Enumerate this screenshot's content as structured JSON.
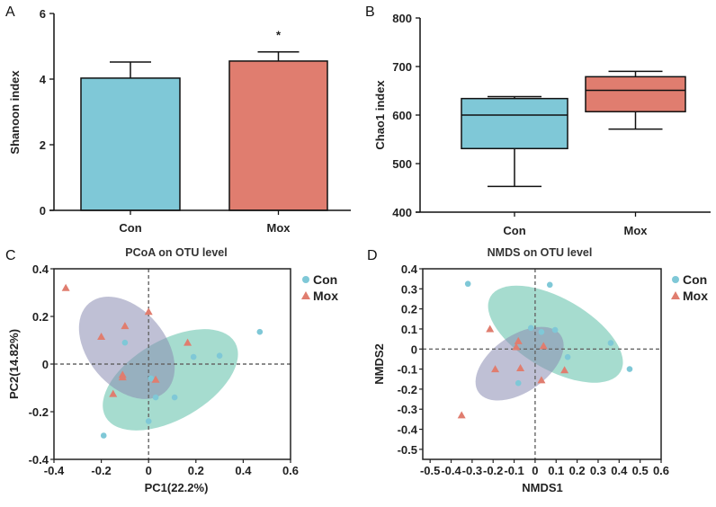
{
  "colors": {
    "con": "#7fc8d7",
    "mox": "#e07d6f",
    "con_ellipse": "#5cc0a8",
    "mox_ellipse": "#8a8db2"
  },
  "chart_data": [
    {
      "panel": "A",
      "type": "bar",
      "ylabel": "Shanoon index",
      "xlabel": "",
      "categories": [
        "Con",
        "Mox"
      ],
      "values": [
        4.03,
        4.55
      ],
      "error_upper": [
        4.52,
        4.83
      ],
      "annotations": [
        "",
        "*"
      ],
      "ylim": [
        0,
        6
      ],
      "yticks": [
        0,
        2,
        4,
        6
      ]
    },
    {
      "panel": "B",
      "type": "box",
      "ylabel": "Chao1 index",
      "xlabel": "",
      "categories": [
        "Con",
        "Mox"
      ],
      "boxes": [
        {
          "min": 453,
          "q1": 531,
          "median": 600,
          "q3": 634,
          "max": 638
        },
        {
          "min": 571,
          "q1": 607,
          "median": 651,
          "q3": 679,
          "max": 690
        }
      ],
      "ylim": [
        400,
        800
      ],
      "yticks": [
        400,
        500,
        600,
        700,
        800
      ]
    },
    {
      "panel": "C",
      "type": "scatter",
      "title": "PCoA on OTU level",
      "xlabel": "PC1(22.2%)",
      "ylabel": "PC2(14.82%)",
      "xlim": [
        -0.4,
        0.6
      ],
      "ylim": [
        -0.4,
        0.4
      ],
      "xticks": [
        -0.4,
        -0.2,
        0,
        0.2,
        0.4,
        0.6
      ],
      "xtick_labels": [
        "-0.4",
        "-0.2",
        "0",
        "0.2",
        "0.4",
        "0.6"
      ],
      "yticks": [
        -0.4,
        -0.2,
        0,
        0.2,
        0.4
      ],
      "ytick_labels": [
        "-0.4",
        "-0.2",
        "0",
        "0.2",
        "0.4"
      ],
      "legend": [
        "Con",
        "Mox"
      ],
      "legend_position": "right",
      "series": [
        {
          "name": "Con",
          "marker": "circle",
          "ellipse_center": [
            0.092,
            -0.066
          ],
          "points": [
            [
              -0.1,
              0.09
            ],
            [
              0.47,
              0.135
            ],
            [
              0.19,
              0.03
            ],
            [
              0.3,
              0.035
            ],
            [
              0.01,
              -0.06
            ],
            [
              0.03,
              -0.14
            ],
            [
              0.11,
              -0.14
            ],
            [
              0,
              -0.24
            ],
            [
              -0.19,
              -0.3
            ]
          ]
        },
        {
          "name": "Mox",
          "marker": "triangle",
          "ellipse_center": [
            -0.092,
            0.068
          ],
          "points": [
            [
              -0.35,
              0.32
            ],
            [
              0,
              0.22
            ],
            [
              -0.1,
              0.16
            ],
            [
              -0.2,
              0.115
            ],
            [
              0.165,
              0.09
            ],
            [
              -0.11,
              -0.045
            ],
            [
              -0.11,
              -0.055
            ],
            [
              0.03,
              -0.065
            ],
            [
              -0.15,
              -0.125
            ]
          ]
        }
      ]
    },
    {
      "panel": "D",
      "type": "scatter",
      "title": "NMDS on OTU level",
      "xlabel": "NMDS1",
      "ylabel": "NMDS2",
      "xlim": [
        -0.535,
        0.6
      ],
      "ylim": [
        -0.55,
        0.4
      ],
      "xticks": [
        -0.5,
        -0.4,
        -0.3,
        -0.2,
        -0.1,
        0,
        0.1,
        0.2,
        0.3,
        0.4,
        0.5,
        0.6
      ],
      "xtick_labels": [
        "-0.5",
        "-0.4",
        "-0.3",
        "-0.2",
        "-0.1",
        "0",
        "0.1",
        "0.2",
        "0.3",
        "0.4",
        "0.5",
        "0.6"
      ],
      "yticks": [
        -0.5,
        -0.4,
        -0.3,
        -0.2,
        -0.1,
        0,
        0.1,
        0.2,
        0.3,
        0.4
      ],
      "ytick_labels": [
        "-0.5",
        "-0.4",
        "-0.3",
        "-0.2",
        "-0.1",
        "0",
        "0.1",
        "0.2",
        "0.3",
        "0.4"
      ],
      "legend": [
        "Con",
        "Mox"
      ],
      "legend_position": "right",
      "series": [
        {
          "name": "Con",
          "marker": "circle",
          "ellipse_center": [
            0.097,
            0.074
          ],
          "points": [
            [
              -0.32,
              0.325
            ],
            [
              0.07,
              0.32
            ],
            [
              -0.02,
              0.105
            ],
            [
              0.03,
              0.085
            ],
            [
              0.095,
              0.095
            ],
            [
              0.36,
              0.03
            ],
            [
              0.155,
              -0.04
            ],
            [
              0.45,
              -0.1
            ],
            [
              -0.08,
              -0.17
            ]
          ]
        },
        {
          "name": "Mox",
          "marker": "triangle",
          "ellipse_center": [
            -0.074,
            -0.073
          ],
          "points": [
            [
              -0.215,
              0.1
            ],
            [
              -0.08,
              0.04
            ],
            [
              -0.09,
              0.01
            ],
            [
              0.04,
              0.015
            ],
            [
              -0.19,
              -0.1
            ],
            [
              -0.07,
              -0.095
            ],
            [
              0.14,
              -0.105
            ],
            [
              0.03,
              -0.155
            ],
            [
              -0.35,
              -0.33
            ]
          ]
        }
      ]
    }
  ]
}
